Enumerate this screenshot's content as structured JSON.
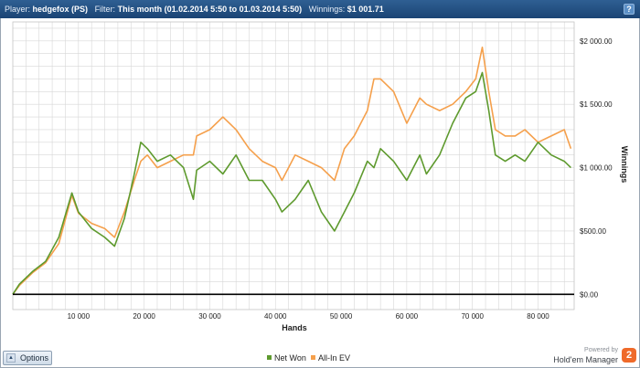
{
  "titlebar": {
    "player_label": "Player:",
    "player_value": "hedgefox (PS)",
    "filter_label": "Filter:",
    "filter_value": "This month (01.02.2014 5:50 to 01.03.2014 5:50)",
    "winnings_label": "Winnings:",
    "winnings_value": "$1 001.71",
    "help": "?"
  },
  "options": {
    "label": "Options"
  },
  "branding": {
    "powered_by": "Powered by",
    "name": "Hold'em Manager",
    "badge": "2"
  },
  "colors": {
    "net_won": "#5e9a2e",
    "allin_ev": "#f5a04c",
    "grid": "#d7d7d7",
    "zero_line": "#000000"
  },
  "chart_data": {
    "type": "line",
    "xlabel": "Hands",
    "ylabel": "Winnings",
    "xlim": [
      0,
      85500
    ],
    "ylim": [
      -120,
      2150
    ],
    "x_ticks": [
      10000,
      20000,
      30000,
      40000,
      50000,
      60000,
      70000,
      80000
    ],
    "x_tick_labels": [
      "10 000",
      "20 000",
      "30 000",
      "40 000",
      "50 000",
      "60 000",
      "70 000",
      "80 000"
    ],
    "y_ticks": [
      0,
      500,
      1000,
      1500,
      2000
    ],
    "y_tick_labels": [
      "$0.00",
      "$500.00",
      "$1 000.00",
      "$1 500.00",
      "$2 000.00"
    ],
    "grid": true,
    "legend_position": "bottom-center",
    "series": [
      {
        "name": "Net Won",
        "x": [
          0,
          1000,
          3000,
          5000,
          7000,
          9000,
          10000,
          12000,
          14000,
          15500,
          17000,
          18500,
          19500,
          20500,
          22000,
          24000,
          26000,
          27500,
          28000,
          30000,
          32000,
          34000,
          36000,
          38000,
          40000,
          41000,
          43000,
          45000,
          47000,
          49000,
          50500,
          52000,
          54000,
          55000,
          56000,
          58000,
          60000,
          62000,
          63000,
          65000,
          67000,
          69000,
          70500,
          71500,
          72500,
          73500,
          75000,
          76500,
          78000,
          80000,
          82000,
          84000,
          85000
        ],
        "y": [
          0,
          80,
          180,
          260,
          450,
          800,
          650,
          520,
          450,
          380,
          600,
          950,
          1200,
          1150,
          1050,
          1100,
          1000,
          750,
          980,
          1050,
          950,
          1100,
          900,
          900,
          750,
          650,
          750,
          900,
          650,
          500,
          650,
          800,
          1050,
          1000,
          1150,
          1050,
          900,
          1100,
          950,
          1100,
          1350,
          1550,
          1600,
          1750,
          1450,
          1100,
          1050,
          1100,
          1050,
          1200,
          1100,
          1050,
          1000
        ]
      },
      {
        "name": "All-In EV",
        "x": [
          0,
          1000,
          3000,
          5000,
          7000,
          9000,
          10000,
          12000,
          14000,
          15500,
          17000,
          18500,
          19500,
          20500,
          22000,
          24000,
          26000,
          27500,
          28000,
          30000,
          32000,
          34000,
          36000,
          38000,
          40000,
          41000,
          43000,
          45000,
          47000,
          49000,
          50500,
          52000,
          54000,
          55000,
          56000,
          58000,
          60000,
          62000,
          63000,
          65000,
          67000,
          69000,
          70500,
          71500,
          72500,
          73500,
          75000,
          76500,
          78000,
          80000,
          82000,
          84000,
          85000
        ],
        "y": [
          0,
          70,
          170,
          250,
          400,
          780,
          640,
          560,
          520,
          450,
          650,
          900,
          1050,
          1100,
          1000,
          1050,
          1100,
          1100,
          1250,
          1300,
          1400,
          1300,
          1150,
          1050,
          1000,
          900,
          1100,
          1050,
          1000,
          900,
          1150,
          1250,
          1450,
          1700,
          1700,
          1600,
          1350,
          1550,
          1500,
          1450,
          1500,
          1600,
          1700,
          1950,
          1600,
          1300,
          1250,
          1250,
          1300,
          1200,
          1250,
          1300,
          1150
        ]
      }
    ]
  }
}
